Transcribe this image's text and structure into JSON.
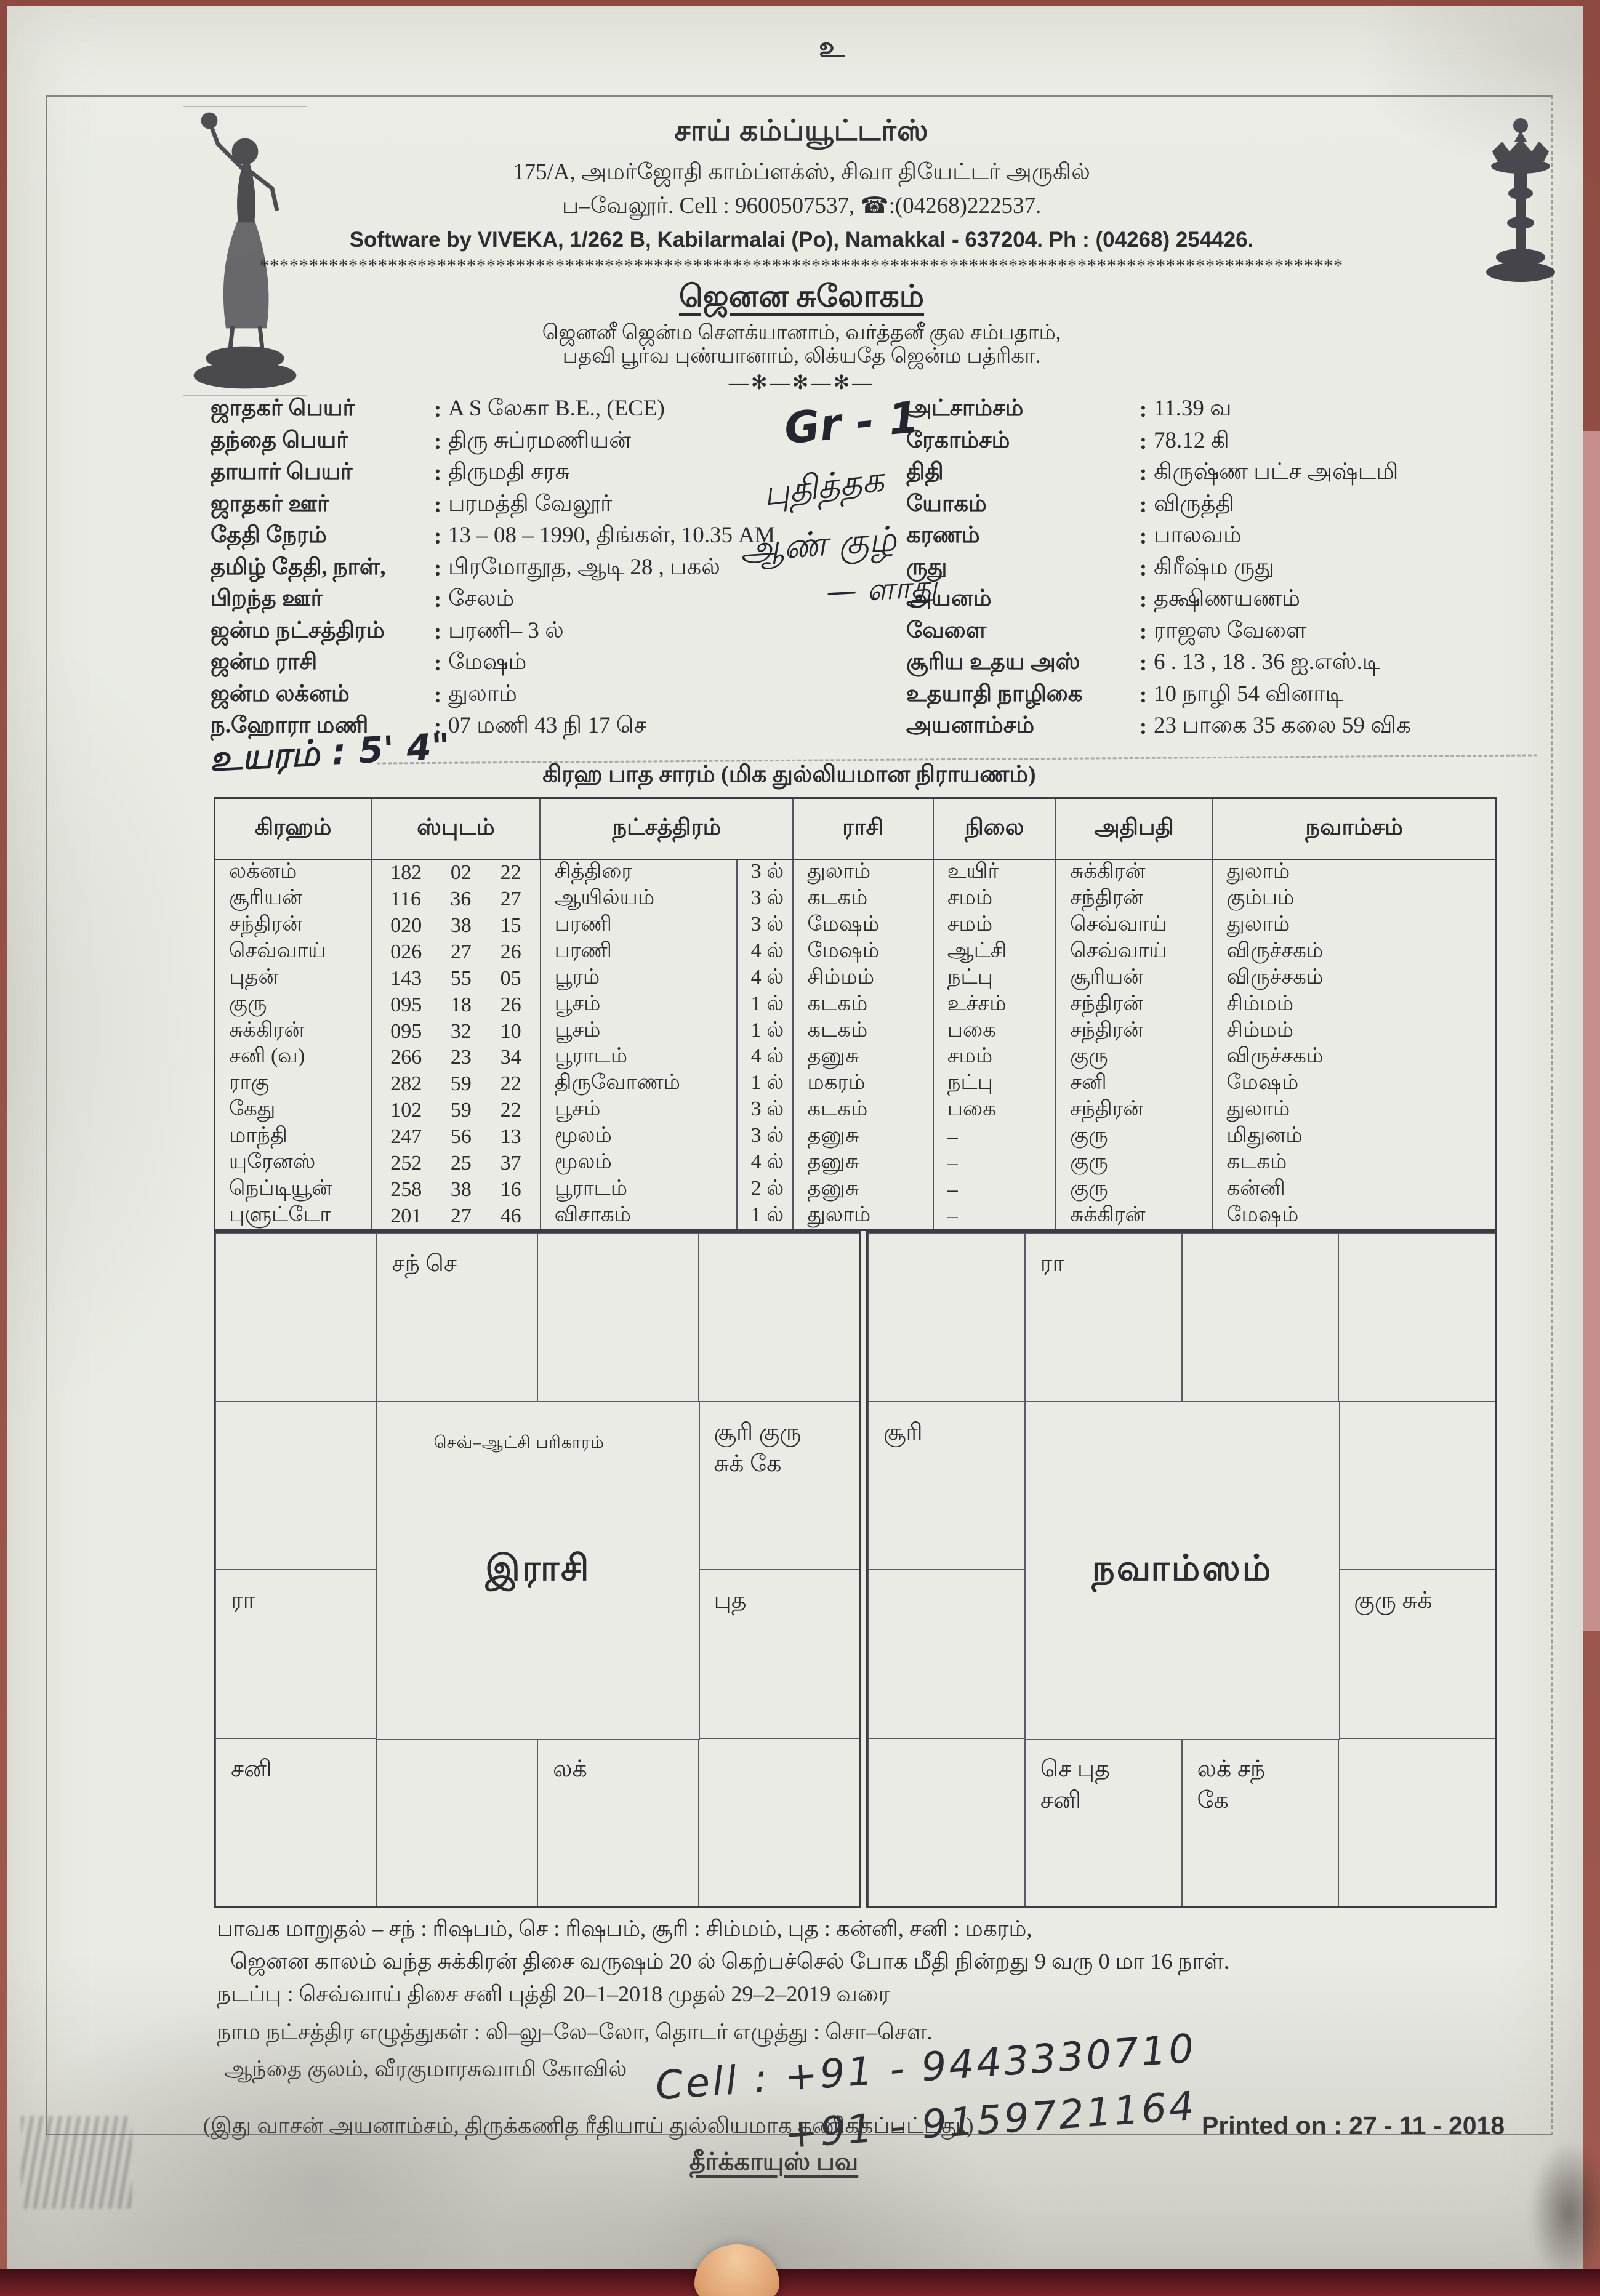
{
  "invocation": "உ",
  "header": {
    "shop_name": "சாய் கம்ப்யூட்டர்ஸ்",
    "address_line1": "175/A, அமர்ஜோதி காம்ப்ளக்ஸ், சிவா தியேட்டர் அருகில்",
    "address_line2": "ப–வேலூர்.   Cell : 9600507537,   ☎:(04268)222537.",
    "software_line": "Software by  VIVEKA,  1/262 B,  Kabilarmalai  (Po),  Namakkal - 637204. Ph : (04268) 254426.",
    "stars_separator": "**************************************************************************************************************",
    "title": "ஜெனன சுலோகம்",
    "sloka_line1": "ஜெனனீ ஜென்ம சௌக்யானாம், வர்த்தனீ குல சம்பதாம்,",
    "sloka_line2": "பதவி பூர்வ புண்யானாம், லிக்யதே ஜென்ம பத்ரிகா.",
    "small_separator": "—✻—✻—✻—"
  },
  "details_left": [
    {
      "label": "ஜாதகர் பெயர்",
      "value": "A S லேகா B.E., (ECE)"
    },
    {
      "label": "தந்தை பெயர்",
      "value": "திரு சுப்ரமணியன்"
    },
    {
      "label": "தாயார் பெயர்",
      "value": "திருமதி சரசு"
    },
    {
      "label": "ஜாதகர் ஊர்",
      "value": "பரமத்தி வேலூர்"
    },
    {
      "label": "தேதி நேரம்",
      "value": "13 – 08 – 1990, திங்கள், 10.35 AM"
    },
    {
      "label": "தமிழ் தேதி, நாள்,",
      "value": "பிரமோதூத, ஆடி  28 , பகல்"
    },
    {
      "label": "பிறந்த ஊர்",
      "value": "சேலம்"
    },
    {
      "label": "ஜன்ம நட்சத்திரம்",
      "value": "பரணி– 3 ல்"
    },
    {
      "label": "ஜன்ம ராசி",
      "value": "மேஷம்"
    },
    {
      "label": "ஜன்ம லக்னம்",
      "value": "துலாம்"
    },
    {
      "label": "ந.ஹோரா மணி",
      "value": "07 மணி  43 நி  17 செ"
    }
  ],
  "details_right": [
    {
      "label": "அட்சாம்சம்",
      "value": "11.39 வ"
    },
    {
      "label": "ரேகாம்சம்",
      "value": "78.12 கி"
    },
    {
      "label": "திதி",
      "value": "கிருஷ்ண பட்ச அஷ்டமி"
    },
    {
      "label": "யோகம்",
      "value": "விருத்தி"
    },
    {
      "label": "கரணம்",
      "value": "பாலவம்"
    },
    {
      "label": "ருது",
      "value": "கிரீஷ்ம ருது"
    },
    {
      "label": "அயனம்",
      "value": "தக்ஷிணயணம்"
    },
    {
      "label": "வேளை",
      "value": "ராஜஸ வேளை"
    },
    {
      "label": "சூரிய உதய அஸ்",
      "value": "6 . 13 ,   18 . 36  ஐ.எஸ்.டி"
    },
    {
      "label": "உதயாதி நாழிகை",
      "value": "10 நாழி  54  வினாடி"
    },
    {
      "label": "அயனாம்சம்",
      "value": "23 பாகை  35 கலை  59 விக"
    }
  ],
  "handwritten": {
    "grade": "Gr - 1",
    "note1": "புதித்தக",
    "note2": "ஆண் குழ்",
    "note3": "— ளாது",
    "height": "உயரம் : 5' 4\"",
    "phone1": "Cell : +91 - 9443330710",
    "phone2": "+91 - 9159721164"
  },
  "table": {
    "title": "கிரஹ பாத சாரம் (மிக துல்லியமான நிராயணம்)",
    "headers": [
      "கிரஹம்",
      "ஸ்புடம்",
      "நட்சத்திரம்",
      "ராசி",
      "நிலை",
      "அதிபதி",
      "நவாம்சம்"
    ],
    "rows": [
      {
        "graham": "லக்னம்",
        "deg": "182",
        "min": "02",
        "sec": "22",
        "star": "சித்திரை",
        "padam": "3 ல்",
        "rasi": "துலாம்",
        "nilai": "உயிர்",
        "lord": "சுக்கிரன்",
        "navamsam": "துலாம்"
      },
      {
        "graham": "சூரியன்",
        "deg": "116",
        "min": "36",
        "sec": "27",
        "star": "ஆயில்யம்",
        "padam": "3 ல்",
        "rasi": "கடகம்",
        "nilai": "சமம்",
        "lord": "சந்திரன்",
        "navamsam": "கும்பம்"
      },
      {
        "graham": "சந்திரன்",
        "deg": "020",
        "min": "38",
        "sec": "15",
        "star": "பரணி",
        "padam": "3 ல்",
        "rasi": "மேஷம்",
        "nilai": "சமம்",
        "lord": "செவ்வாய்",
        "navamsam": "துலாம்"
      },
      {
        "graham": "செவ்வாய்",
        "deg": "026",
        "min": "27",
        "sec": "26",
        "star": "பரணி",
        "padam": "4 ல்",
        "rasi": "மேஷம்",
        "nilai": "ஆட்சி",
        "lord": "செவ்வாய்",
        "navamsam": "விருச்சகம்"
      },
      {
        "graham": "புதன்",
        "deg": "143",
        "min": "55",
        "sec": "05",
        "star": "பூரம்",
        "padam": "4 ல்",
        "rasi": "சிம்மம்",
        "nilai": "நட்பு",
        "lord": "சூரியன்",
        "navamsam": "விருச்சகம்"
      },
      {
        "graham": "குரு",
        "deg": "095",
        "min": "18",
        "sec": "26",
        "star": "பூசம்",
        "padam": "1 ல்",
        "rasi": "கடகம்",
        "nilai": "உச்சம்",
        "lord": "சந்திரன்",
        "navamsam": "சிம்மம்"
      },
      {
        "graham": "சுக்கிரன்",
        "deg": "095",
        "min": "32",
        "sec": "10",
        "star": "பூசம்",
        "padam": "1 ல்",
        "rasi": "கடகம்",
        "nilai": "பகை",
        "lord": "சந்திரன்",
        "navamsam": "சிம்மம்"
      },
      {
        "graham": "சனி (வ)",
        "deg": "266",
        "min": "23",
        "sec": "34",
        "star": "பூராடம்",
        "padam": "4 ல்",
        "rasi": "தனுசு",
        "nilai": "சமம்",
        "lord": "குரு",
        "navamsam": "விருச்சகம்"
      },
      {
        "graham": "ராகு",
        "deg": "282",
        "min": "59",
        "sec": "22",
        "star": "திருவோணம்",
        "padam": "1 ல்",
        "rasi": "மகரம்",
        "nilai": "நட்பு",
        "lord": "சனி",
        "navamsam": "மேஷம்"
      },
      {
        "graham": "கேது",
        "deg": "102",
        "min": "59",
        "sec": "22",
        "star": "பூசம்",
        "padam": "3 ல்",
        "rasi": "கடகம்",
        "nilai": "பகை",
        "lord": "சந்திரன்",
        "navamsam": "துலாம்"
      },
      {
        "graham": "மாந்தி",
        "deg": "247",
        "min": "56",
        "sec": "13",
        "star": "மூலம்",
        "padam": "3 ல்",
        "rasi": "தனுசு",
        "nilai": "–",
        "lord": "குரு",
        "navamsam": "மிதுனம்"
      },
      {
        "graham": "யுரேனஸ்",
        "deg": "252",
        "min": "25",
        "sec": "37",
        "star": "மூலம்",
        "padam": "4 ல்",
        "rasi": "தனுசு",
        "nilai": "–",
        "lord": "குரு",
        "navamsam": "கடகம்"
      },
      {
        "graham": "நெப்டியூன்",
        "deg": "258",
        "min": "38",
        "sec": "16",
        "star": "பூராடம்",
        "padam": "2 ல்",
        "rasi": "தனுசு",
        "nilai": "–",
        "lord": "குரு",
        "navamsam": "கன்னி"
      },
      {
        "graham": "புளுட்டோ",
        "deg": "201",
        "min": "27",
        "sec": "46",
        "star": "விசாகம்",
        "padam": "1 ல்",
        "rasi": "துலாம்",
        "nilai": "–",
        "lord": "சுக்கிரன்",
        "navamsam": "மேஷம்"
      }
    ]
  },
  "rasi_chart": {
    "center_title": "இராசி",
    "center_note": "செவ்–ஆட்சி பரிகாரம்",
    "cells": {
      "r1c1": "",
      "r1c2": "சந் செ",
      "r1c3": "",
      "r1c4": "",
      "r2c1": "",
      "r2c2": "",
      "r2c3": "",
      "r2c4": "சூரி குரு\nசுக்  கே",
      "r3c1": "ரா",
      "r3c2": "",
      "r3c3": "",
      "r3c4": "புத",
      "r4c1": "சனி",
      "r4c2": "",
      "r4c3": "லக்",
      "r4c4": ""
    }
  },
  "navamsa_chart": {
    "center_title": "நவாம்ஸம்",
    "cells": {
      "r1c1": "",
      "r1c2": "ரா",
      "r1c3": "",
      "r1c4": "",
      "r2c1": "சூரி",
      "r2c2": "",
      "r2c3": "",
      "r2c4": "",
      "r3c1": "",
      "r3c2": "",
      "r3c3": "",
      "r3c4": "குரு  சுக்",
      "r4c1": "",
      "r4c2": "செ  புத\nசனி",
      "r4c3": "லக்  சந்\nகே",
      "r4c4": ""
    }
  },
  "footer": {
    "bhavaka_line": "பாவக மாறுதல்  –  சந் : ரிஷபம், செ : ரிஷபம், சூரி : சிம்மம், புத : கன்னி, சனி : மகரம்,",
    "dasa_line1": "ஜெனன காலம் வந்த சுக்கிரன் திசை வருஷம் 20 ல் கெற்பச்செல் போக மீதி நின்றது 9 வரு 0 மா 16 நாள்.",
    "dasa_line2": "நடப்பு : செவ்வாய் திசை  சனி புத்தி    20–1–2018 முதல்  29–2–2019 வரை",
    "name_letters_line": "நாம நட்சத்திர எழுத்துகள் : லி–லு–லே–லோ, தொடர் எழுத்து : சொ–சௌ.",
    "kulam_line": "ஆந்தை குலம், வீரகுமாரசுவாமி கோவில்",
    "accuracy_note": "(இது வாசன் அயனாம்சம், திருக்கணித ரீதியாய் துல்லியமாக கணிக்கப்பட்டது.)",
    "printed_on": "Printed on : 27 - 11 - 2018",
    "blessing": "தீர்க்காயுஸ் பவ"
  }
}
